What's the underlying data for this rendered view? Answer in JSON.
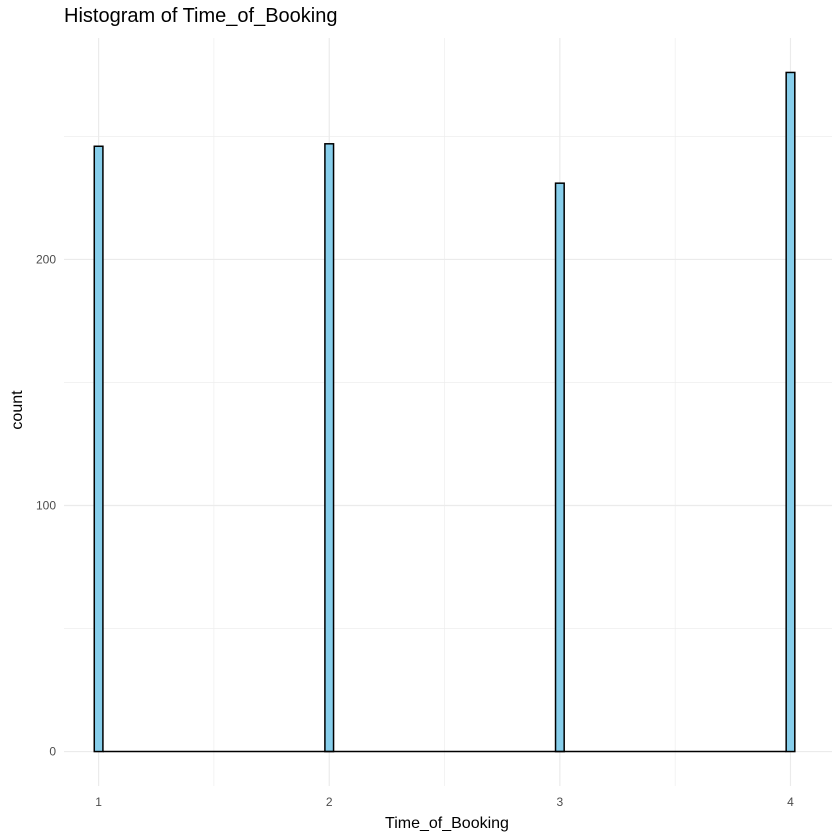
{
  "chart_data": {
    "type": "bar",
    "title": "Histogram of Time_of_Booking",
    "xlabel": "Time_of_Booking",
    "ylabel": "count",
    "x_ticks": [
      1,
      2,
      3,
      4
    ],
    "y_ticks": [
      0,
      100,
      200
    ],
    "xlim": [
      0.85,
      4.18
    ],
    "ylim": [
      -14,
      290
    ],
    "categories": [
      1,
      2,
      3,
      4
    ],
    "values": [
      246,
      247,
      231,
      276
    ],
    "bin_width": 0.0375,
    "grid": true,
    "colors": {
      "fill": "#87CEEB",
      "stroke": "#000000",
      "grid": "#ebebeb"
    }
  }
}
